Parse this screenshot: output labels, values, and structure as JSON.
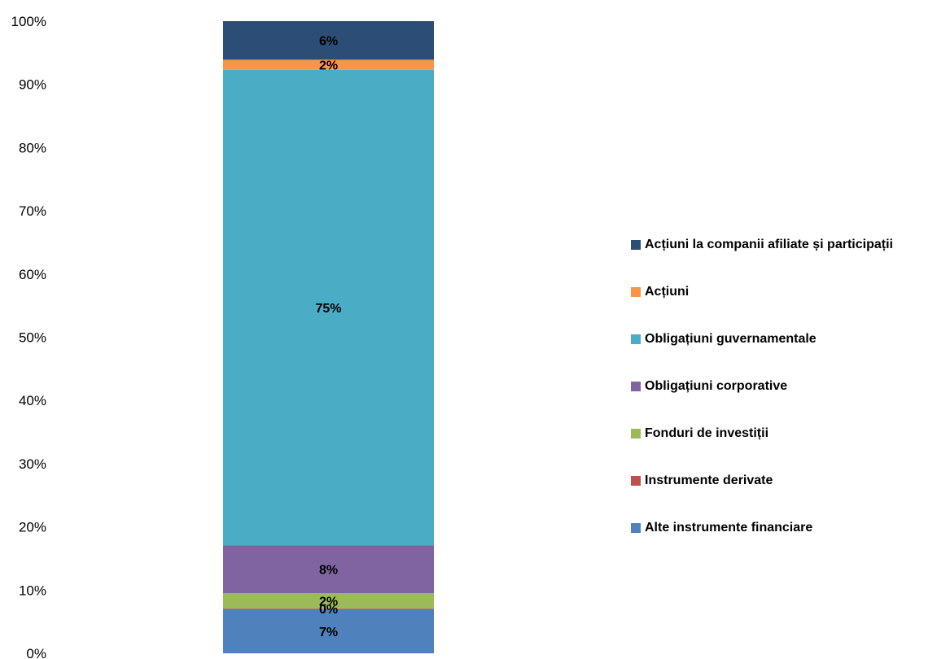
{
  "chart_data": {
    "type": "bar",
    "stacked": true,
    "categories": [
      ""
    ],
    "yaxis": {
      "ticks": [
        "0%",
        "10%",
        "20%",
        "30%",
        "40%",
        "50%",
        "60%",
        "70%",
        "80%",
        "90%",
        "100%"
      ],
      "ylim": [
        0,
        100
      ]
    },
    "series": [
      {
        "name": "Alte instrumente financiare",
        "value": 7,
        "label": "7%",
        "color": "#4F81BD"
      },
      {
        "name": "Instrumente derivate",
        "value": 0.1,
        "label": "0%",
        "color": "#C0504D"
      },
      {
        "name": "Fonduri de investiții",
        "value": 2.4,
        "label": "2%",
        "color": "#9BBB59"
      },
      {
        "name": "Obligațiuni corporative",
        "value": 7.6,
        "label": "8%",
        "color": "#8064A2"
      },
      {
        "name": "Obligațiuni guvernamentale",
        "value": 75.2,
        "label": "75%",
        "color": "#4BACC6"
      },
      {
        "name": "Acțiuni",
        "value": 1.6,
        "label": "2%",
        "color": "#F79646"
      },
      {
        "name": "Acțiuni la companii afiliate și participații",
        "value": 6.1,
        "label": "6%",
        "color": "#2C4D75"
      }
    ],
    "legend_position": "right",
    "grid": false
  }
}
